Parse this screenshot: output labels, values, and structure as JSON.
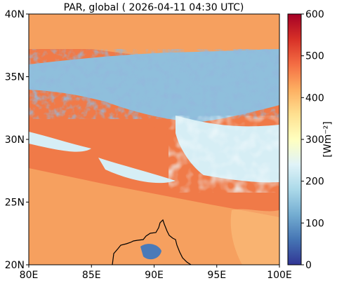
{
  "title": "PAR, global ( 2026-04-11 04:30 UTC)",
  "map": {
    "x_ticks": [
      "80E",
      "85E",
      "90E",
      "95E",
      "100E"
    ],
    "y_ticks": [
      "20N",
      "25N",
      "30N",
      "35N",
      "40N"
    ],
    "x_range": [
      80,
      100
    ],
    "y_range": [
      20,
      40
    ]
  },
  "colorbar": {
    "label": "[Wm⁻²]",
    "ticks": [
      "0",
      "100",
      "200",
      "300",
      "400",
      "500",
      "600"
    ],
    "range": [
      0,
      600
    ],
    "colormap": "RdYlBu_r",
    "stops": [
      "#313695",
      "#4575b4",
      "#74add1",
      "#abd9e9",
      "#e0f3f8",
      "#ffffbf",
      "#fee090",
      "#fdae61",
      "#f46d43",
      "#d73027",
      "#a50026"
    ]
  },
  "colors": {
    "clear_sky_high": "#f07a48",
    "clear_sky": "#f6a05f",
    "haze": "#fbc37f",
    "cloud_thin": "#d6eef5",
    "cloud": "#8fbfdc",
    "cloud_thick": "#4a7ab8",
    "coastline": "#000000"
  }
}
